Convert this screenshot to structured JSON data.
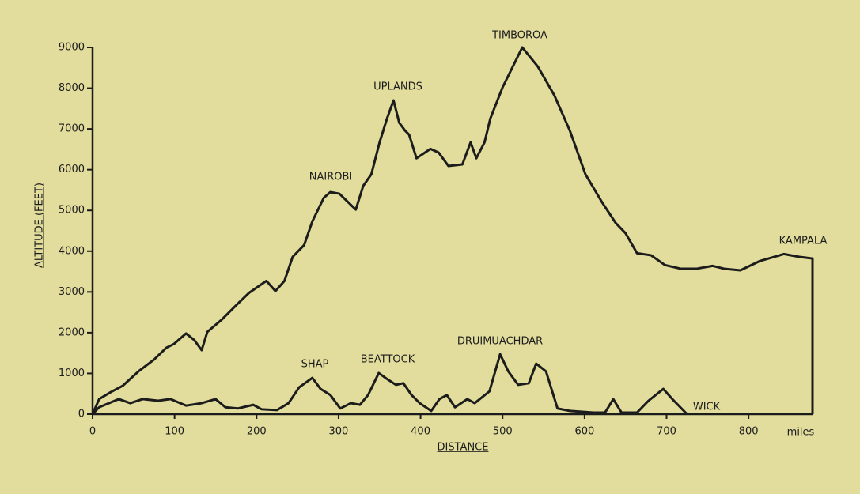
{
  "chart_data": {
    "type": "line",
    "xlabel": "DISTANCE",
    "ylabel": "ALTITUDE (FEET)",
    "x_unit": "miles",
    "xlim": [
      0,
      878
    ],
    "ylim": [
      0,
      9000
    ],
    "xticks": [
      0,
      100,
      200,
      300,
      400,
      500,
      600,
      700,
      800
    ],
    "yticks": [
      0,
      1000,
      2000,
      3000,
      4000,
      5000,
      6000,
      7000,
      8000,
      9000
    ],
    "series": [
      {
        "color": "#1c1c1c",
        "x": [
          0,
          8,
          22,
          37,
          56,
          75,
          90,
          99,
          114,
          124,
          133,
          140,
          157,
          176,
          191,
          212,
          223,
          234,
          244,
          258,
          268,
          282,
          290,
          301,
          321,
          330,
          340,
          350,
          359,
          367,
          374,
          381,
          386,
          395,
          412,
          422,
          434,
          451,
          461,
          468,
          478,
          485,
          500,
          524,
          543,
          563,
          582,
          601,
          621,
          638,
          650,
          664,
          681,
          698,
          717,
          737,
          756,
          770,
          790,
          814,
          843,
          862,
          878,
          878
        ],
        "values": [
          0,
          370,
          540,
          700,
          1050,
          1340,
          1630,
          1720,
          1980,
          1820,
          1570,
          2020,
          2310,
          2690,
          2980,
          3270,
          3020,
          3270,
          3860,
          4150,
          4730,
          5310,
          5450,
          5410,
          5020,
          5600,
          5890,
          6670,
          7250,
          7700,
          7150,
          6960,
          6860,
          6280,
          6510,
          6420,
          6090,
          6130,
          6670,
          6280,
          6670,
          7250,
          8020,
          9000,
          8530,
          7830,
          6960,
          5890,
          5210,
          4690,
          4440,
          3950,
          3900,
          3660,
          3570,
          3570,
          3640,
          3570,
          3530,
          3760,
          3930,
          3860,
          3820,
          0
        ]
      },
      {
        "color": "#1c1c1c",
        "x": [
          0,
          8,
          32,
          46,
          61,
          80,
          95,
          114,
          133,
          150,
          162,
          177,
          196,
          206,
          225,
          239,
          252,
          268,
          278,
          290,
          302,
          315,
          326,
          336,
          349,
          360,
          370,
          379,
          389,
          399,
          413,
          423,
          432,
          442,
          457,
          466,
          484,
          497,
          507,
          519,
          532,
          541,
          553,
          567,
          582,
          611,
          625,
          635,
          645,
          664,
          678,
          696,
          707,
          725
        ],
        "values": [
          0,
          170,
          370,
          270,
          370,
          330,
          370,
          210,
          270,
          370,
          170,
          140,
          230,
          120,
          100,
          270,
          660,
          890,
          620,
          470,
          140,
          270,
          230,
          470,
          1010,
          850,
          720,
          760,
          470,
          270,
          80,
          370,
          470,
          170,
          370,
          270,
          560,
          1470,
          1050,
          720,
          760,
          1240,
          1050,
          140,
          80,
          40,
          40,
          370,
          40,
          40,
          330,
          620,
          370,
          0
        ]
      }
    ],
    "annotations": [
      "NAIROBI",
      "UPLANDS",
      "TIMBOROA",
      "KAMPALA",
      "SHAP",
      "BEATTOCK",
      "DRUIMUACHDAR",
      "WICK"
    ]
  }
}
